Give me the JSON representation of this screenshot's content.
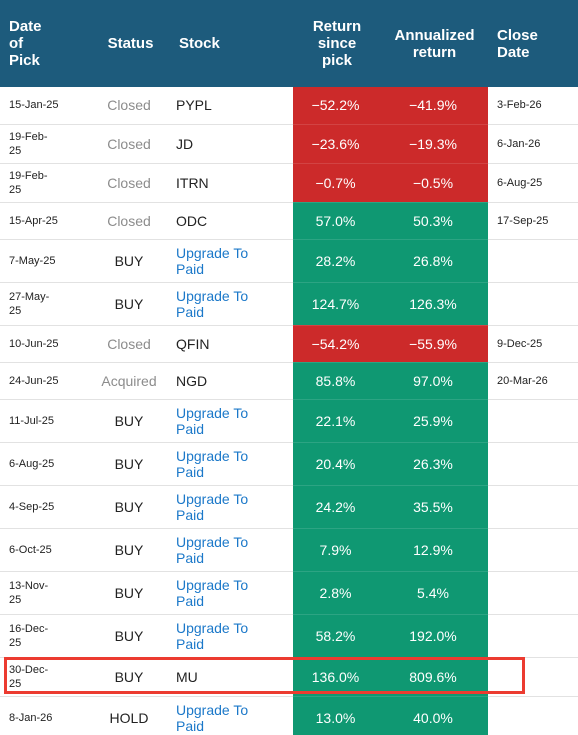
{
  "header_color": "#1d5b7c",
  "highlight_row": 14,
  "highlight_color": "#ec3b30",
  "table": {
    "headers": [
      "Date of Pick",
      "Status",
      "Stock",
      "Return since pick",
      "Annualized return",
      "Close Date"
    ],
    "rows": [
      {
        "date": "15-Jan-25",
        "status": "Closed",
        "status_color": "#8c8c8c",
        "stock": "PYPL",
        "stock_color": "#222222",
        "return": "−52.2%",
        "annualized": "−41.9%",
        "value_color": "#cc2a2a",
        "close": "3-Feb-26"
      },
      {
        "date": "19-Feb-25",
        "status": "Closed",
        "status_color": "#8c8c8c",
        "stock": "JD",
        "stock_color": "#222222",
        "return": "−23.6%",
        "annualized": "−19.3%",
        "value_color": "#cc2a2a",
        "close": "6-Jan-26"
      },
      {
        "date": "19-Feb-25",
        "status": "Closed",
        "status_color": "#8c8c8c",
        "stock": "ITRN",
        "stock_color": "#222222",
        "return": "−0.7%",
        "annualized": "−0.5%",
        "value_color": "#cc2a2a",
        "close": "6-Aug-25"
      },
      {
        "date": "15-Apr-25",
        "status": "Closed",
        "status_color": "#8c8c8c",
        "stock": "ODC",
        "stock_color": "#222222",
        "return": "57.0%",
        "annualized": "50.3%",
        "value_color": "#0f9872",
        "close": "17-Sep-25"
      },
      {
        "date": "7-May-25",
        "status": "BUY",
        "status_color": "#222222",
        "stock": "Upgrade To Paid",
        "stock_color": "#1b78c9",
        "return": "28.2%",
        "annualized": "26.8%",
        "value_color": "#0f9872"
      },
      {
        "date": "27-May-25",
        "status": "BUY",
        "status_color": "#222222",
        "stock": "Upgrade To Paid",
        "stock_color": "#1b78c9",
        "return": "124.7%",
        "annualized": "126.3%",
        "value_color": "#0f9872"
      },
      {
        "date": "10-Jun-25",
        "status": "Closed",
        "status_color": "#8c8c8c",
        "stock": "QFIN",
        "stock_color": "#222222",
        "return": "−54.2%",
        "annualized": "−55.9%",
        "value_color": "#cc2a2a",
        "close": "9-Dec-25"
      },
      {
        "date": "24-Jun-25",
        "status": "Acquired",
        "status_color": "#8c8c8c",
        "stock": "NGD",
        "stock_color": "#222222",
        "return": "85.8%",
        "annualized": "97.0%",
        "value_color": "#0f9872",
        "close": "20-Mar-26"
      },
      {
        "date": "11-Jul-25",
        "status": "BUY",
        "status_color": "#222222",
        "stock": "Upgrade To Paid",
        "stock_color": "#1b78c9",
        "return": "22.1%",
        "annualized": "25.9%",
        "value_color": "#0f9872"
      },
      {
        "date": "6-Aug-25",
        "status": "BUY",
        "status_color": "#222222",
        "stock": "Upgrade To Paid",
        "stock_color": "#1b78c9",
        "return": "20.4%",
        "annualized": "26.3%",
        "value_color": "#0f9872"
      },
      {
        "date": "4-Sep-25",
        "status": "BUY",
        "status_color": "#222222",
        "stock": "Upgrade To Paid",
        "stock_color": "#1b78c9",
        "return": "24.2%",
        "annualized": "35.5%",
        "value_color": "#0f9872"
      },
      {
        "date": "6-Oct-25",
        "status": "BUY",
        "status_color": "#222222",
        "stock": "Upgrade To Paid",
        "stock_color": "#1b78c9",
        "return": "7.9%",
        "annualized": "12.9%",
        "value_color": "#0f9872"
      },
      {
        "date": "13-Nov-25",
        "status": "BUY",
        "status_color": "#222222",
        "stock": "Upgrade To Paid",
        "stock_color": "#1b78c9",
        "return": "2.8%",
        "annualized": "5.4%",
        "value_color": "#0f9872"
      },
      {
        "date": "16-Dec-25",
        "status": "BUY",
        "status_color": "#222222",
        "stock": "Upgrade To Paid",
        "stock_color": "#1b78c9",
        "return": "58.2%",
        "annualized": "192.0%",
        "value_color": "#0f9872"
      },
      {
        "date": "30-Dec-25",
        "status": "BUY",
        "status_color": "#222222",
        "stock": "MU",
        "stock_color": "#222222",
        "return": "136.0%",
        "annualized": "809.6%",
        "value_color": "#0f9872"
      },
      {
        "date": "8-Jan-26",
        "status": "HOLD",
        "status_color": "#222222",
        "stock": "Upgrade To Paid",
        "stock_color": "#1b78c9",
        "return": "13.0%",
        "annualized": "40.0%",
        "value_color": "#0f9872"
      }
    ]
  }
}
